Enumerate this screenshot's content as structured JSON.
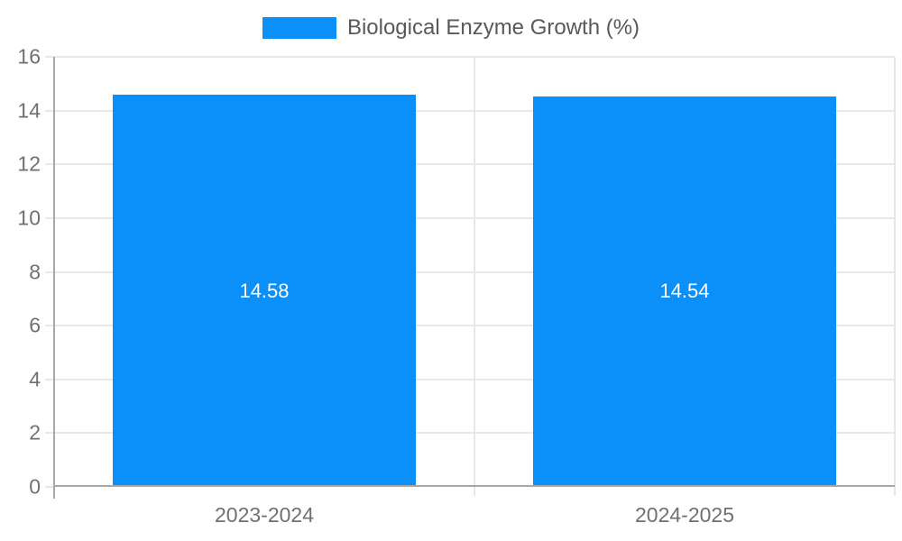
{
  "legend": {
    "label": "Biological Enzyme Growth (%)"
  },
  "colors": {
    "bar": "#0A90F8",
    "grid": "#E8E8E8",
    "axis": "#A8A8A8",
    "tick_text": "#707070",
    "legend_text": "#595959",
    "value_text": "#FFFFFF"
  },
  "chart_data": {
    "type": "bar",
    "title": "Biological Enzyme Growth (%)",
    "categories": [
      "2023-2024",
      "2024-2025"
    ],
    "values": [
      14.58,
      14.54
    ],
    "value_labels": [
      "14.58",
      "14.54"
    ],
    "xlabel": "",
    "ylabel": "",
    "ylim": [
      0,
      16
    ],
    "ytick_step": 2,
    "yticks": [
      0,
      2,
      4,
      6,
      8,
      10,
      12,
      14,
      16
    ],
    "grid": true,
    "legend_position": "top-center",
    "bar_width_fraction": 0.72
  }
}
